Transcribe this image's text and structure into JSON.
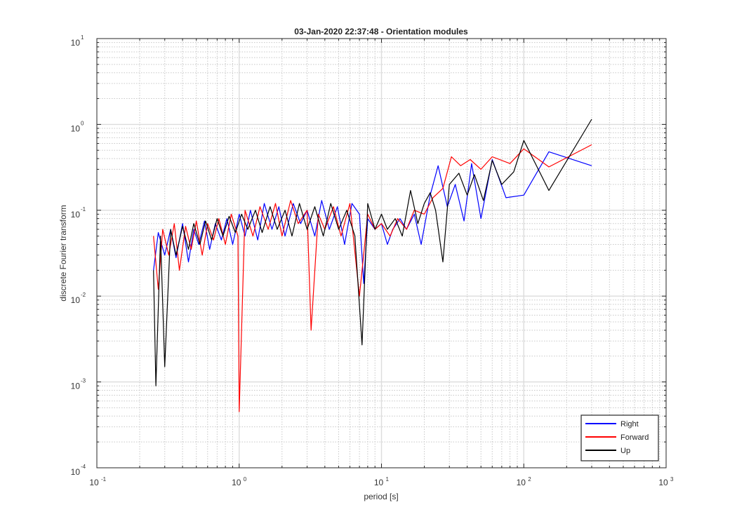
{
  "chart_data": {
    "type": "line",
    "title": "03-Jan-2020 22:37:48 - Orientation modules",
    "xlabel": "period [s]",
    "ylabel": "discrete Fourier transform",
    "xscale": "log",
    "yscale": "log",
    "xlim": [
      0.1,
      1000
    ],
    "ylim": [
      0.0001,
      10
    ],
    "xticks": [
      {
        "base": "10",
        "exp": "-1"
      },
      {
        "base": "10",
        "exp": "0"
      },
      {
        "base": "10",
        "exp": "1"
      },
      {
        "base": "10",
        "exp": "2"
      },
      {
        "base": "10",
        "exp": "3"
      }
    ],
    "yticks": [
      {
        "base": "10",
        "exp": "-4"
      },
      {
        "base": "10",
        "exp": "-3"
      },
      {
        "base": "10",
        "exp": "-2"
      },
      {
        "base": "10",
        "exp": "-1"
      },
      {
        "base": "10",
        "exp": "0"
      },
      {
        "base": "10",
        "exp": "1"
      }
    ],
    "grid": true,
    "minor_grid": true,
    "legend_position": "bottom-right",
    "series": [
      {
        "name": "Right",
        "color": "#0000ff",
        "x": [
          0.25,
          0.27,
          0.3,
          0.33,
          0.36,
          0.4,
          0.44,
          0.48,
          0.52,
          0.57,
          0.62,
          0.68,
          0.75,
          0.82,
          0.9,
          1.0,
          1.1,
          1.2,
          1.35,
          1.5,
          1.7,
          1.9,
          2.1,
          2.4,
          2.7,
          3.0,
          3.4,
          3.8,
          4.3,
          4.9,
          5.5,
          6.2,
          7.0,
          7.5,
          8.0,
          9.0,
          10.0,
          11.0,
          12.0,
          13.5,
          15.0,
          17.0,
          19.0,
          22.0,
          25.0,
          29.0,
          33.0,
          38.0,
          43.0,
          50.0,
          60.0,
          75.0,
          100.0,
          150.0,
          300.0
        ],
        "y": [
          0.02,
          0.055,
          0.03,
          0.06,
          0.028,
          0.07,
          0.025,
          0.06,
          0.04,
          0.075,
          0.035,
          0.07,
          0.045,
          0.08,
          0.04,
          0.09,
          0.05,
          0.1,
          0.045,
          0.12,
          0.06,
          0.11,
          0.05,
          0.12,
          0.07,
          0.1,
          0.05,
          0.13,
          0.06,
          0.11,
          0.04,
          0.12,
          0.09,
          0.014,
          0.08,
          0.06,
          0.07,
          0.04,
          0.06,
          0.08,
          0.06,
          0.09,
          0.04,
          0.15,
          0.33,
          0.11,
          0.2,
          0.075,
          0.35,
          0.08,
          0.39,
          0.14,
          0.15,
          0.48,
          0.33
        ]
      },
      {
        "name": "Forward",
        "color": "#ff0000",
        "x": [
          0.25,
          0.27,
          0.29,
          0.32,
          0.35,
          0.38,
          0.42,
          0.46,
          0.5,
          0.55,
          0.6,
          0.66,
          0.72,
          0.8,
          0.88,
          0.98,
          1.0,
          1.1,
          1.25,
          1.4,
          1.6,
          1.8,
          2.0,
          2.3,
          2.6,
          3.0,
          3.2,
          3.6,
          4.0,
          4.6,
          5.2,
          6.0,
          7.0,
          8.0,
          9.0,
          10.0,
          11.5,
          13.0,
          15.0,
          17.0,
          20.0,
          23.0,
          27.0,
          31.0,
          36.0,
          42.0,
          50.0,
          60.0,
          80.0,
          100.0,
          150.0,
          300.0
        ],
        "y": [
          0.05,
          0.012,
          0.06,
          0.03,
          0.07,
          0.02,
          0.065,
          0.035,
          0.075,
          0.03,
          0.07,
          0.045,
          0.08,
          0.04,
          0.09,
          0.05,
          0.00045,
          0.1,
          0.05,
          0.11,
          0.06,
          0.12,
          0.05,
          0.13,
          0.07,
          0.1,
          0.004,
          0.09,
          0.06,
          0.11,
          0.05,
          0.12,
          0.01,
          0.09,
          0.06,
          0.07,
          0.05,
          0.08,
          0.06,
          0.1,
          0.09,
          0.14,
          0.18,
          0.42,
          0.33,
          0.39,
          0.3,
          0.42,
          0.35,
          0.52,
          0.32,
          0.58
        ]
      },
      {
        "name": "Up",
        "color": "#000000",
        "x": [
          0.25,
          0.26,
          0.28,
          0.3,
          0.33,
          0.36,
          0.4,
          0.44,
          0.48,
          0.53,
          0.58,
          0.64,
          0.7,
          0.77,
          0.85,
          0.94,
          1.04,
          1.15,
          1.3,
          1.45,
          1.65,
          1.85,
          2.1,
          2.35,
          2.65,
          3.0,
          3.4,
          3.9,
          4.4,
          5.0,
          5.7,
          6.5,
          7.3,
          8.0,
          9.0,
          10.0,
          11.0,
          12.5,
          14.0,
          16.0,
          18.0,
          20.0,
          22.0,
          24.0,
          27.0,
          30.0,
          35.0,
          40.0,
          45.0,
          52.0,
          60.0,
          70.0,
          85.0,
          100.0,
          150.0,
          300.0
        ],
        "y": [
          0.02,
          0.0009,
          0.05,
          0.0015,
          0.06,
          0.03,
          0.065,
          0.035,
          0.07,
          0.04,
          0.075,
          0.045,
          0.08,
          0.05,
          0.085,
          0.055,
          0.09,
          0.06,
          0.1,
          0.055,
          0.11,
          0.06,
          0.1,
          0.05,
          0.12,
          0.06,
          0.11,
          0.05,
          0.12,
          0.06,
          0.1,
          0.05,
          0.0027,
          0.12,
          0.06,
          0.09,
          0.06,
          0.08,
          0.05,
          0.17,
          0.07,
          0.12,
          0.16,
          0.1,
          0.025,
          0.2,
          0.27,
          0.15,
          0.26,
          0.13,
          0.38,
          0.2,
          0.28,
          0.65,
          0.17,
          1.15
        ]
      }
    ]
  }
}
